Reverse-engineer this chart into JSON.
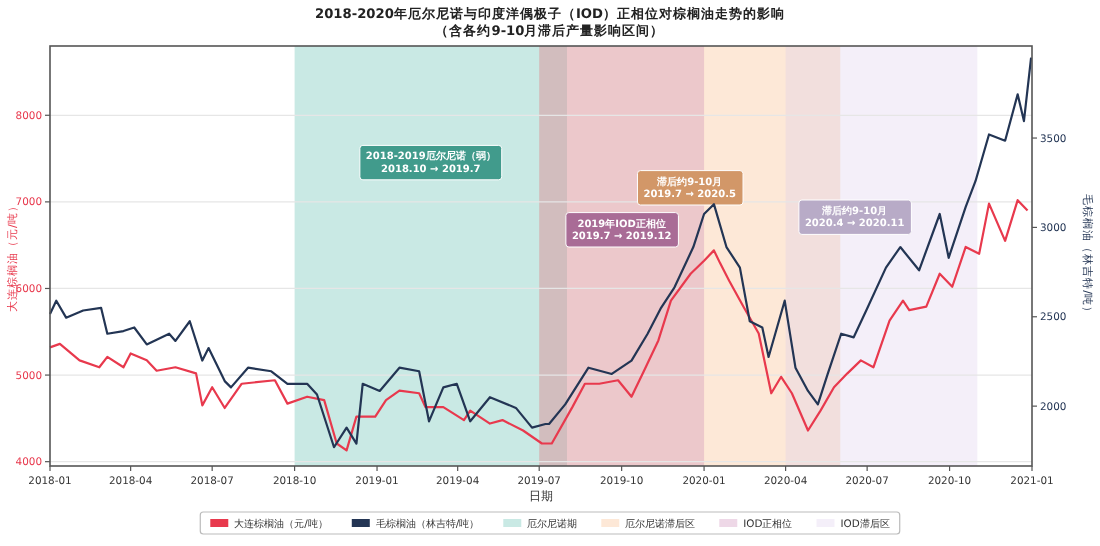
{
  "chart_data": {
    "type": "line",
    "title": "2018-2020年厄尔尼诺与印度洋偶极子（IOD）正相位对棕榈油走势的影响",
    "subtitle": "（含各约9-10月滞后产量影响区间）",
    "xlabel": "日期",
    "ylabel": "大连棕榈油（元/吨）",
    "y2label": "毛棕榈油（林吉特/吨）",
    "xlim": [
      "2018-01-01",
      "2021-01-01"
    ],
    "xticks": [
      {
        "value": "2018-01-01",
        "label": "2018-01"
      },
      {
        "value": "2018-04-01",
        "label": "2018-04"
      },
      {
        "value": "2018-07-01",
        "label": "2018-07"
      },
      {
        "value": "2018-10-01",
        "label": "2018-10"
      },
      {
        "value": "2019-01-01",
        "label": "2019-01"
      },
      {
        "value": "2019-04-01",
        "label": "2019-04"
      },
      {
        "value": "2019-07-01",
        "label": "2019-07"
      },
      {
        "value": "2019-10-01",
        "label": "2019-10"
      },
      {
        "value": "2020-01-01",
        "label": "2020-01"
      },
      {
        "value": "2020-04-01",
        "label": "2020-04"
      },
      {
        "value": "2020-07-01",
        "label": "2020-07"
      },
      {
        "value": "2020-10-01",
        "label": "2020-10"
      },
      {
        "value": "2021-01-01",
        "label": "2021-01"
      }
    ],
    "ylim": [
      3950,
      8800
    ],
    "yticks": [
      4000,
      5000,
      6000,
      7000,
      8000
    ],
    "y2lim": [
      1665,
      4015
    ],
    "y2ticks": [
      2000,
      2500,
      3000,
      3500
    ],
    "grid": "y",
    "legend": "bottom",
    "bands": [
      {
        "axis": "x",
        "from": "2018-10-01",
        "to": "2019-08-01",
        "label": "厄尔尼诺期",
        "color": "#4db6a5"
      },
      {
        "axis": "x",
        "from": "2019-07-01",
        "to": "2020-06-01",
        "label": "厄尔尼诺滞后区",
        "color": "#f7b27a"
      },
      {
        "axis": "x",
        "from": "2019-07-01",
        "to": "2020-01-01",
        "label": "IOD正相位",
        "color": "#c77fb0"
      },
      {
        "axis": "x",
        "from": "2020-04-01",
        "to": "2020-11-01",
        "label": "IOD滞后区",
        "color": "#d9c9ea"
      }
    ],
    "annotations": [
      "2018-2019厄尔尼诺（弱）\n2018.10 → 2019.7",
      "滞后约9-10月\n2019.7 → 2020.5",
      "2019年IOD正相位\n2019.7 → 2019.12",
      "滞后约9-10月\n2020.4 → 2020.11"
    ],
    "series": [
      {
        "name": "大连棕榈油（元/吨）",
        "color": "#e8394d",
        "axis": "y",
        "x": [
          "2018-01-01",
          "2018-01-12",
          "2018-02-03",
          "2018-02-25",
          "2018-03-06",
          "2018-03-24",
          "2018-04-01",
          "2018-04-19",
          "2018-04-30",
          "2018-05-21",
          "2018-06-13",
          "2018-06-20",
          "2018-07-01",
          "2018-07-15",
          "2018-08-03",
          "2018-09-09",
          "2018-09-23",
          "2018-10-15",
          "2018-11-03",
          "2018-11-17",
          "2018-11-28",
          "2018-12-09",
          "2018-12-30",
          "2019-01-11",
          "2019-01-26",
          "2019-02-17",
          "2019-02-24",
          "2019-03-16",
          "2019-04-08",
          "2019-04-15",
          "2019-05-07",
          "2019-05-21",
          "2019-06-13",
          "2019-07-04",
          "2019-07-15",
          "2019-08-07",
          "2019-08-21",
          "2019-09-06",
          "2019-09-27",
          "2019-10-12",
          "2019-10-26",
          "2019-11-11",
          "2019-11-25",
          "2019-12-17",
          "2020-01-01",
          "2020-01-12",
          "2020-01-19",
          "2020-01-29",
          "2020-02-14",
          "2020-03-02",
          "2020-03-16",
          "2020-03-27",
          "2020-04-08",
          "2020-04-26",
          "2020-05-10",
          "2020-05-25",
          "2020-06-09",
          "2020-06-24",
          "2020-07-08",
          "2020-07-26",
          "2020-08-10",
          "2020-08-17",
          "2020-09-05",
          "2020-09-20",
          "2020-10-04",
          "2020-10-19",
          "2020-11-03",
          "2020-11-14",
          "2020-12-02",
          "2020-12-16",
          "2020-12-27"
        ],
        "values": [
          5320,
          5360,
          5170,
          5090,
          5210,
          5090,
          5250,
          5170,
          5050,
          5090,
          5020,
          4650,
          4860,
          4620,
          4900,
          4940,
          4670,
          4750,
          4710,
          4210,
          4130,
          4520,
          4520,
          4710,
          4820,
          4790,
          4630,
          4630,
          4480,
          4590,
          4440,
          4480,
          4360,
          4210,
          4210,
          4630,
          4900,
          4900,
          4940,
          4750,
          5050,
          5400,
          5860,
          6170,
          6320,
          6440,
          6290,
          6090,
          5790,
          5480,
          4790,
          4980,
          4790,
          4360,
          4590,
          4860,
          5020,
          5170,
          5090,
          5630,
          5860,
          5750,
          5790,
          6170,
          6020,
          6480,
          6400,
          6980,
          6550,
          7020,
          6900
        ]
      },
      {
        "name": "毛棕榈油（林吉特/吨）",
        "color": "#233554",
        "axis": "y2",
        "x": [
          "2018-01-01",
          "2018-01-08",
          "2018-01-19",
          "2018-02-07",
          "2018-02-27",
          "2018-03-06",
          "2018-03-24",
          "2018-04-05",
          "2018-04-19",
          "2018-05-14",
          "2018-05-21",
          "2018-06-06",
          "2018-06-20",
          "2018-06-27",
          "2018-07-15",
          "2018-07-22",
          "2018-08-10",
          "2018-09-05",
          "2018-09-23",
          "2018-10-15",
          "2018-10-26",
          "2018-11-14",
          "2018-11-28",
          "2018-12-09",
          "2018-12-16",
          "2019-01-04",
          "2019-01-26",
          "2019-02-17",
          "2019-02-28",
          "2019-03-16",
          "2019-03-31",
          "2019-04-15",
          "2019-05-07",
          "2019-06-05",
          "2019-06-23",
          "2019-07-08",
          "2019-07-12",
          "2019-07-30",
          "2019-08-25",
          "2019-09-20",
          "2019-10-12",
          "2019-10-30",
          "2019-11-14",
          "2019-11-29",
          "2019-12-20",
          "2020-01-01",
          "2020-01-12",
          "2020-01-26",
          "2020-02-10",
          "2020-02-21",
          "2020-03-06",
          "2020-03-13",
          "2020-03-31",
          "2020-04-12",
          "2020-04-26",
          "2020-05-07",
          "2020-05-18",
          "2020-06-02",
          "2020-06-16",
          "2020-06-30",
          "2020-07-22",
          "2020-08-07",
          "2020-08-28",
          "2020-09-20",
          "2020-09-30",
          "2020-10-19",
          "2020-10-30",
          "2020-11-14",
          "2020-12-02",
          "2020-12-16",
          "2020-12-23",
          "2020-12-31"
        ],
        "values": [
          2515,
          2590,
          2495,
          2535,
          2550,
          2405,
          2420,
          2440,
          2345,
          2405,
          2365,
          2475,
          2255,
          2325,
          2140,
          2105,
          2215,
          2195,
          2125,
          2125,
          2065,
          1770,
          1880,
          1790,
          2125,
          2085,
          2215,
          2195,
          1915,
          2105,
          2125,
          1915,
          2050,
          1990,
          1880,
          1900,
          1900,
          2010,
          2215,
          2180,
          2255,
          2405,
          2550,
          2665,
          2890,
          3075,
          3130,
          2890,
          2775,
          2475,
          2440,
          2275,
          2590,
          2215,
          2085,
          2010,
          2180,
          2405,
          2385,
          2535,
          2775,
          2890,
          2760,
          3075,
          2830,
          3115,
          3260,
          3520,
          3485,
          3745,
          3595,
          3950
        ]
      }
    ]
  }
}
